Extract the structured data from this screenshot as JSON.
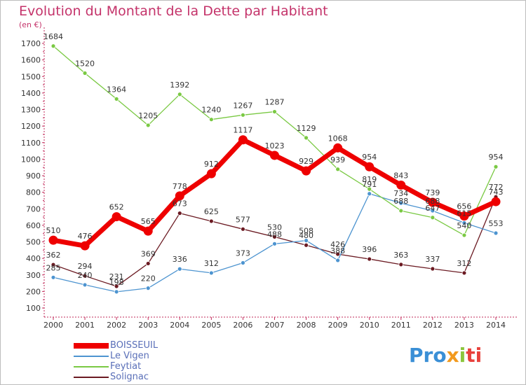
{
  "title": "Evolution du Montant de la Dette par Habitant",
  "unit": "(en €)",
  "logo": [
    "Pro",
    "x",
    "i",
    "ti"
  ],
  "chart_data": {
    "type": "line",
    "categories": [
      "2000",
      "2001",
      "2002",
      "2003",
      "2004",
      "2005",
      "2006",
      "2007",
      "2008",
      "2009",
      "2010",
      "2011",
      "2012",
      "2013",
      "2014"
    ],
    "ylim": [
      100,
      1700
    ],
    "yticks": [
      100,
      200,
      300,
      400,
      500,
      600,
      700,
      800,
      900,
      1000,
      1100,
      1200,
      1300,
      1400,
      1500,
      1600,
      1700
    ],
    "grid": false,
    "legend_position": "bottom-left",
    "series": [
      {
        "name": "BOISSEUIL",
        "color": "#ee0000",
        "values": [
          510,
          476,
          652,
          565,
          778,
          912,
          1117,
          1023,
          929,
          1068,
          954,
          843,
          739,
          656,
          743
        ],
        "labels": [
          "510",
          "476",
          "652",
          "565",
          "778",
          "912",
          "1117",
          "1023",
          "929",
          "1068",
          "954",
          "843",
          "739",
          "656",
          "743"
        ]
      },
      {
        "name": "Le Vigen",
        "color": "#4d94d0",
        "values": [
          285,
          240,
          198,
          220,
          336,
          312,
          373,
          488,
          508,
          388,
          791,
          734,
          688,
          615,
          553
        ],
        "labels": [
          "285",
          "240",
          "198",
          "220",
          "336",
          "312",
          "373",
          "488",
          "508",
          "388",
          "791",
          "734",
          "688",
          "615",
          "553"
        ]
      },
      {
        "name": "Feytiat",
        "color": "#7ac943",
        "values": [
          1684,
          1520,
          1364,
          1205,
          1392,
          1240,
          1267,
          1287,
          1129,
          939,
          819,
          688,
          647,
          540,
          954
        ],
        "labels": [
          "1684",
          "1520",
          "1364",
          "1205",
          "1392",
          "1240",
          "1267",
          "1287",
          "1129",
          "939",
          "819",
          "688",
          "647",
          "540",
          "954"
        ]
      },
      {
        "name": "Solignac",
        "color": "#6b1a22",
        "values": [
          362,
          294,
          231,
          369,
          673,
          625,
          577,
          530,
          480,
          426,
          396,
          363,
          337,
          312,
          772
        ],
        "labels": [
          "362",
          "294",
          "231",
          "369",
          "673",
          "625",
          "577",
          "530",
          "480",
          "426",
          "396",
          "363",
          "337",
          "312",
          "772"
        ]
      }
    ]
  }
}
